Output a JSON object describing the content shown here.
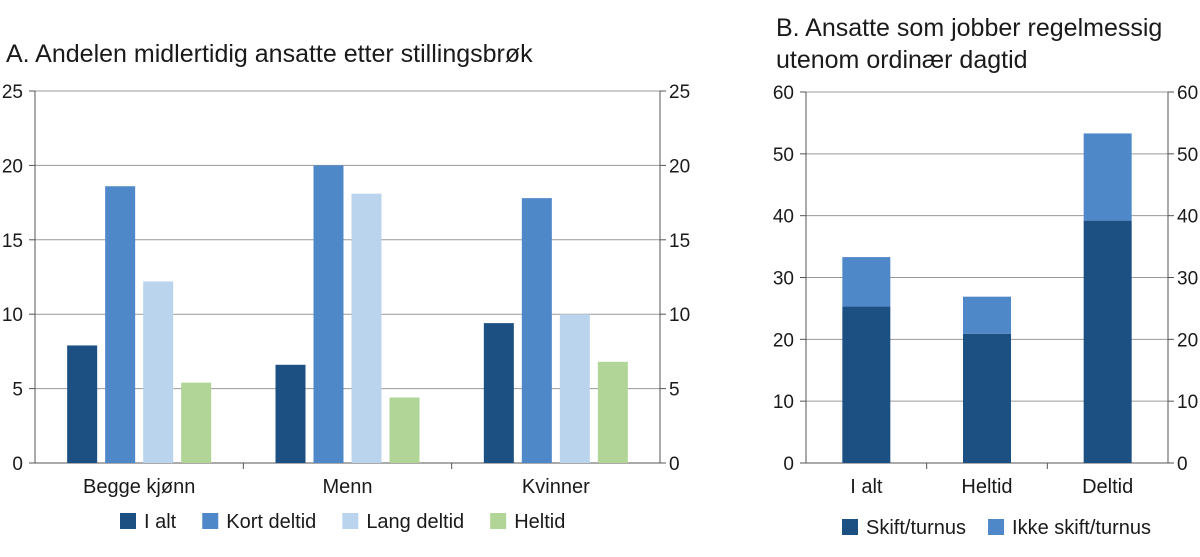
{
  "chart_data": [
    {
      "type": "bar",
      "title": "A. Andelen midlertidig ansatte etter stillingsbrøk",
      "categories": [
        "Begge kjønn",
        "Menn",
        "Kvinner"
      ],
      "series": [
        {
          "name": "I alt",
          "values": [
            7.9,
            6.6,
            9.4
          ],
          "color": "#1c4f82"
        },
        {
          "name": "Kort deltid",
          "values": [
            18.6,
            20.0,
            17.8
          ],
          "color": "#4e88c8"
        },
        {
          "name": "Lang deltid",
          "values": [
            12.2,
            18.1,
            10.0
          ],
          "color": "#bad4ed"
        },
        {
          "name": "Heltid",
          "values": [
            5.4,
            4.4,
            6.8
          ],
          "color": "#b1d596"
        }
      ],
      "ylim": [
        0,
        25
      ],
      "yticks": [
        0,
        5,
        10,
        15,
        20,
        25
      ],
      "grid": true,
      "legend": "bottom"
    },
    {
      "type": "bar",
      "stacked": true,
      "title": [
        "B. Ansatte som jobber regelmessig",
        "utenom ordinær dagtid"
      ],
      "categories": [
        "I alt",
        "Heltid",
        "Deltid"
      ],
      "series": [
        {
          "name": "Skift/turnus",
          "values": [
            25.3,
            20.9,
            39.2
          ],
          "color": "#1c4f82"
        },
        {
          "name": "Ikke skift/turnus",
          "values": [
            8.0,
            6.0,
            14.1
          ],
          "color": "#4e88c8"
        }
      ],
      "ylim": [
        0,
        60
      ],
      "yticks": [
        0,
        10,
        20,
        30,
        40,
        50,
        60
      ],
      "grid": true,
      "legend": "bottom"
    }
  ]
}
